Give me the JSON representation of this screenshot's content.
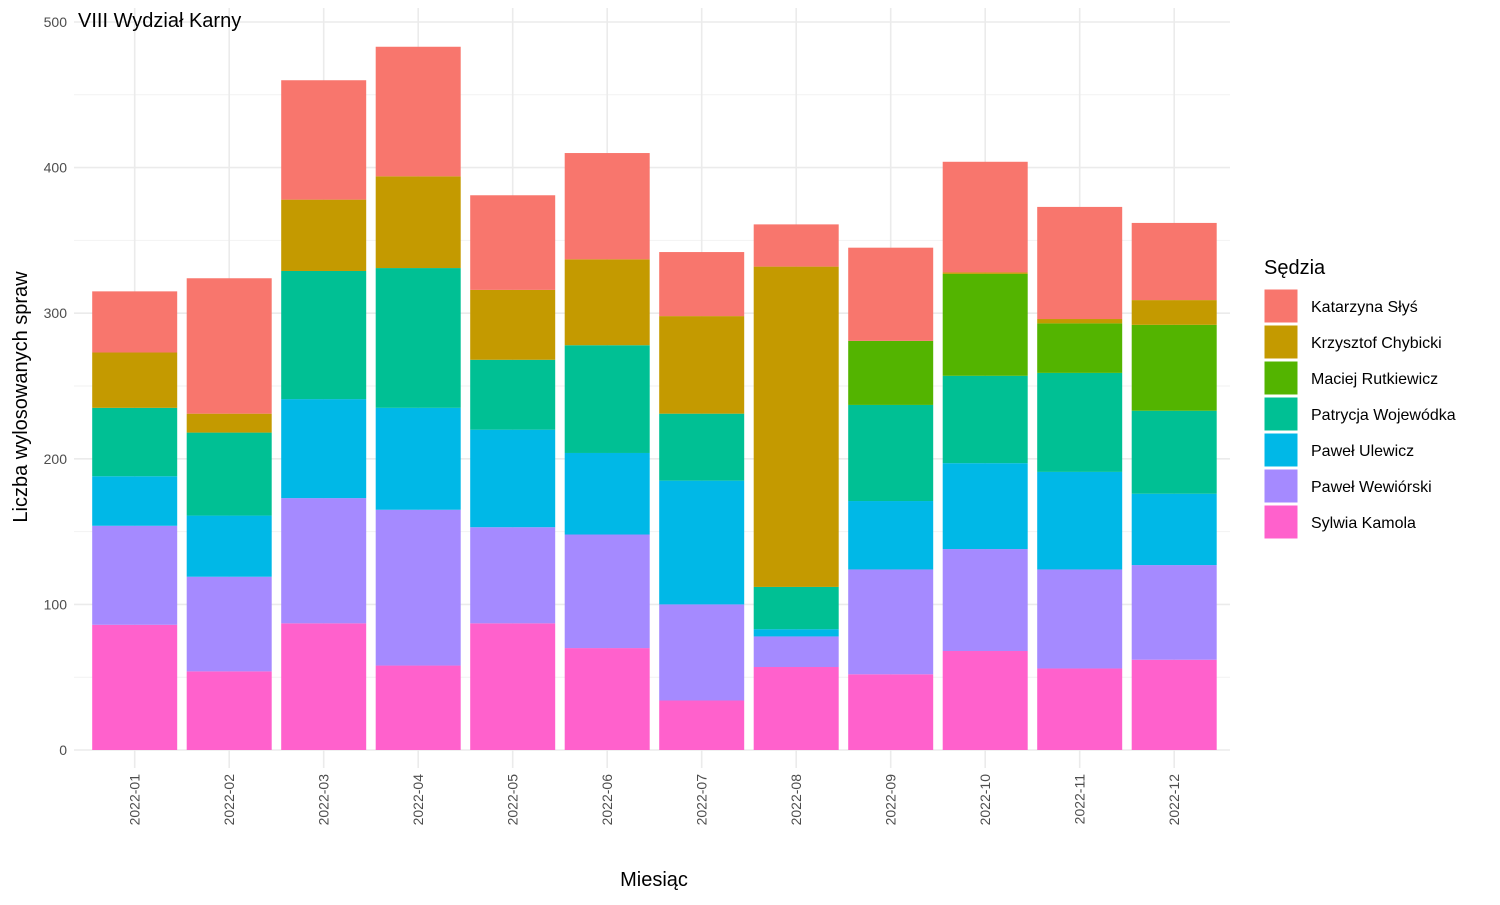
{
  "chart_data": {
    "type": "bar",
    "stacked": true,
    "title": "VIII Wydział Karny",
    "xlabel": "Miesiąc",
    "ylabel": "Liczba wylosowanych spraw",
    "ylim": [
      0,
      500
    ],
    "yticks": [
      0,
      100,
      200,
      300,
      400,
      500
    ],
    "grid": true,
    "legend_title": "Sędzia",
    "legend_position": "right",
    "categories": [
      "2022-01",
      "2022-02",
      "2022-03",
      "2022-04",
      "2022-05",
      "2022-06",
      "2022-07",
      "2022-08",
      "2022-09",
      "2022-10",
      "2022-11",
      "2022-12"
    ],
    "series": [
      {
        "name": "Sylwia Kamola",
        "color": "#FF61CC",
        "values": [
          86,
          54,
          87,
          58,
          87,
          70,
          34,
          57,
          52,
          68,
          56,
          62
        ]
      },
      {
        "name": "Paweł Wewiórski",
        "color": "#A58AFF",
        "values": [
          68,
          65,
          86,
          107,
          66,
          78,
          66,
          21,
          72,
          70,
          68,
          65
        ]
      },
      {
        "name": "Paweł Ulewicz",
        "color": "#00B8E7",
        "values": [
          34,
          42,
          68,
          70,
          67,
          56,
          85,
          5,
          47,
          59,
          67,
          49
        ]
      },
      {
        "name": "Patrycja Wojewódka",
        "color": "#00C094",
        "values": [
          47,
          57,
          88,
          96,
          48,
          74,
          46,
          29,
          66,
          60,
          68,
          57
        ]
      },
      {
        "name": "Maciej Rutkiewicz",
        "color": "#53B400",
        "values": [
          0,
          0,
          0,
          0,
          0,
          0,
          0,
          0,
          44,
          70,
          34,
          59
        ]
      },
      {
        "name": "Krzysztof Chybicki",
        "color": "#C49A00",
        "values": [
          38,
          13,
          49,
          63,
          48,
          59,
          67,
          220,
          0,
          1,
          3,
          17
        ]
      },
      {
        "name": "Katarzyna Słyś",
        "color": "#F8766D",
        "values": [
          42,
          93,
          82,
          89,
          65,
          73,
          44,
          29,
          64,
          76,
          77,
          53
        ]
      }
    ],
    "legend_order": [
      "Katarzyna Słyś",
      "Krzysztof Chybicki",
      "Maciej Rutkiewicz",
      "Patrycja Wojewódka",
      "Paweł Ulewicz",
      "Paweł Wewiórski",
      "Sylwia Kamola"
    ]
  }
}
